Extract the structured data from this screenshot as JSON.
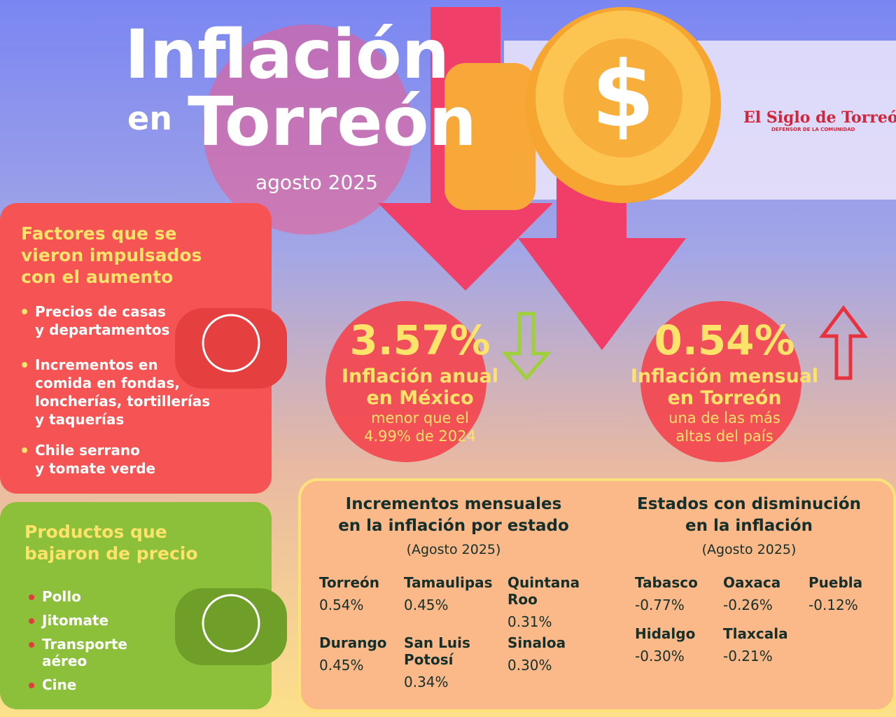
{
  "header": {
    "title_line1": "Inflación",
    "title_small": "en",
    "title_line2": "Torreón",
    "subtitle": "agosto 2025",
    "brand": "El Siglo de Torreón",
    "brand_tagline": "DEFENSOR DE LA COMUNIDAD"
  },
  "factors_up": {
    "title": [
      "Factores que se",
      "vieron impulsados",
      "con el aumento"
    ],
    "items": [
      [
        "Precios de casas",
        "y departamentos"
      ],
      [
        "Incrementos en",
        "comida en fondas,",
        "loncherías, tortillerías",
        "y taquerías"
      ],
      [
        "Chile serrano",
        "y tomate verde"
      ]
    ]
  },
  "products_down": {
    "title": [
      "Productos que",
      "bajaron de precio"
    ],
    "items": [
      [
        "Pollo"
      ],
      [
        "Jitomate"
      ],
      [
        "Transporte",
        "aéreo"
      ],
      [
        "Cine"
      ]
    ]
  },
  "stats": [
    {
      "value": "3.57%",
      "label": [
        "Inflación anual",
        "en México"
      ],
      "note": [
        "menor que el",
        "4.99% de 2024"
      ]
    },
    {
      "value": "0.54%",
      "label": [
        "Inflación mensual",
        "en Torreón"
      ],
      "note": [
        "una de las más",
        "altas del país"
      ]
    }
  ],
  "increments": {
    "title": [
      "Incrementos mensuales",
      "en la inflación por estado"
    ],
    "subtitle": "(Agosto 2025)",
    "states": [
      {
        "name": "Torreón",
        "value": "0.54%"
      },
      {
        "name": "Tamaulipas",
        "value": "0.45%"
      },
      {
        "name": "Quintana Roo",
        "value": "0.31%"
      },
      {
        "name": "Durango",
        "value": "0.45%"
      },
      {
        "name": "San Luis Potosí",
        "value": "0.34%"
      },
      {
        "name": "Sinaloa",
        "value": "0.30%"
      }
    ]
  },
  "decreases": {
    "title": [
      "Estados con disminución",
      "en la inflación"
    ],
    "subtitle": "(Agosto 2025)",
    "states": [
      {
        "name": "Tabasco",
        "value": "-0.77%"
      },
      {
        "name": "Oaxaca",
        "value": "-0.26%"
      },
      {
        "name": "Puebla",
        "value": "-0.12%"
      },
      {
        "name": "Hidalgo",
        "value": "-0.30%"
      },
      {
        "name": "Tlaxcala",
        "value": "-0.21%"
      }
    ]
  }
}
